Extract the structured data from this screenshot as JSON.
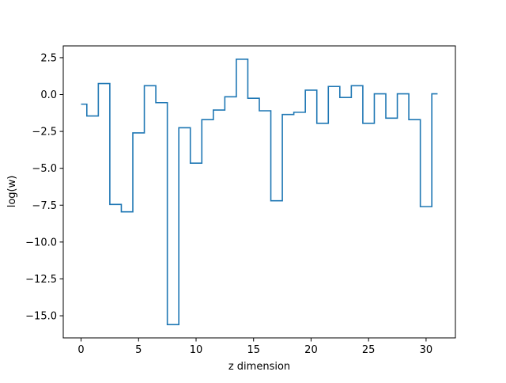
{
  "chart_data": {
    "type": "line",
    "drawstyle": "steps-mid",
    "title": "",
    "xlabel": "z dimension",
    "ylabel": "log(w)",
    "xlim": [
      -1.55,
      32.55
    ],
    "ylim": [
      -16.5,
      3.3
    ],
    "xticks": [
      0,
      5,
      10,
      15,
      20,
      25,
      30
    ],
    "xtick_labels": [
      "0",
      "5",
      "10",
      "15",
      "20",
      "25",
      "30"
    ],
    "yticks": [
      2.5,
      0,
      -2.5,
      -5,
      -7.5,
      -10,
      -12.5,
      -15
    ],
    "ytick_labels": [
      "2.5",
      "0.0",
      "−2.5",
      "−5.0",
      "−7.5",
      "−10.0",
      "−12.5",
      "−15.0"
    ],
    "grid": false,
    "series": [
      {
        "color": "#1f77b4",
        "x": [
          0,
          1,
          2,
          3,
          4,
          5,
          6,
          7,
          8,
          9,
          10,
          11,
          12,
          13,
          14,
          15,
          16,
          17,
          18,
          19,
          20,
          21,
          22,
          23,
          24,
          25,
          26,
          27,
          28,
          29,
          30,
          31
        ],
        "y": [
          -0.65,
          -1.45,
          0.75,
          -7.45,
          -7.95,
          -2.6,
          0.6,
          -0.55,
          -15.6,
          -2.25,
          -4.65,
          -1.7,
          -1.05,
          -0.15,
          2.4,
          -0.25,
          -1.1,
          -7.2,
          -1.35,
          -1.2,
          0.3,
          -1.95,
          0.55,
          -0.2,
          0.6,
          -1.95,
          0.05,
          -1.6,
          0.05,
          -1.7,
          -7.6,
          0.05
        ]
      }
    ]
  }
}
